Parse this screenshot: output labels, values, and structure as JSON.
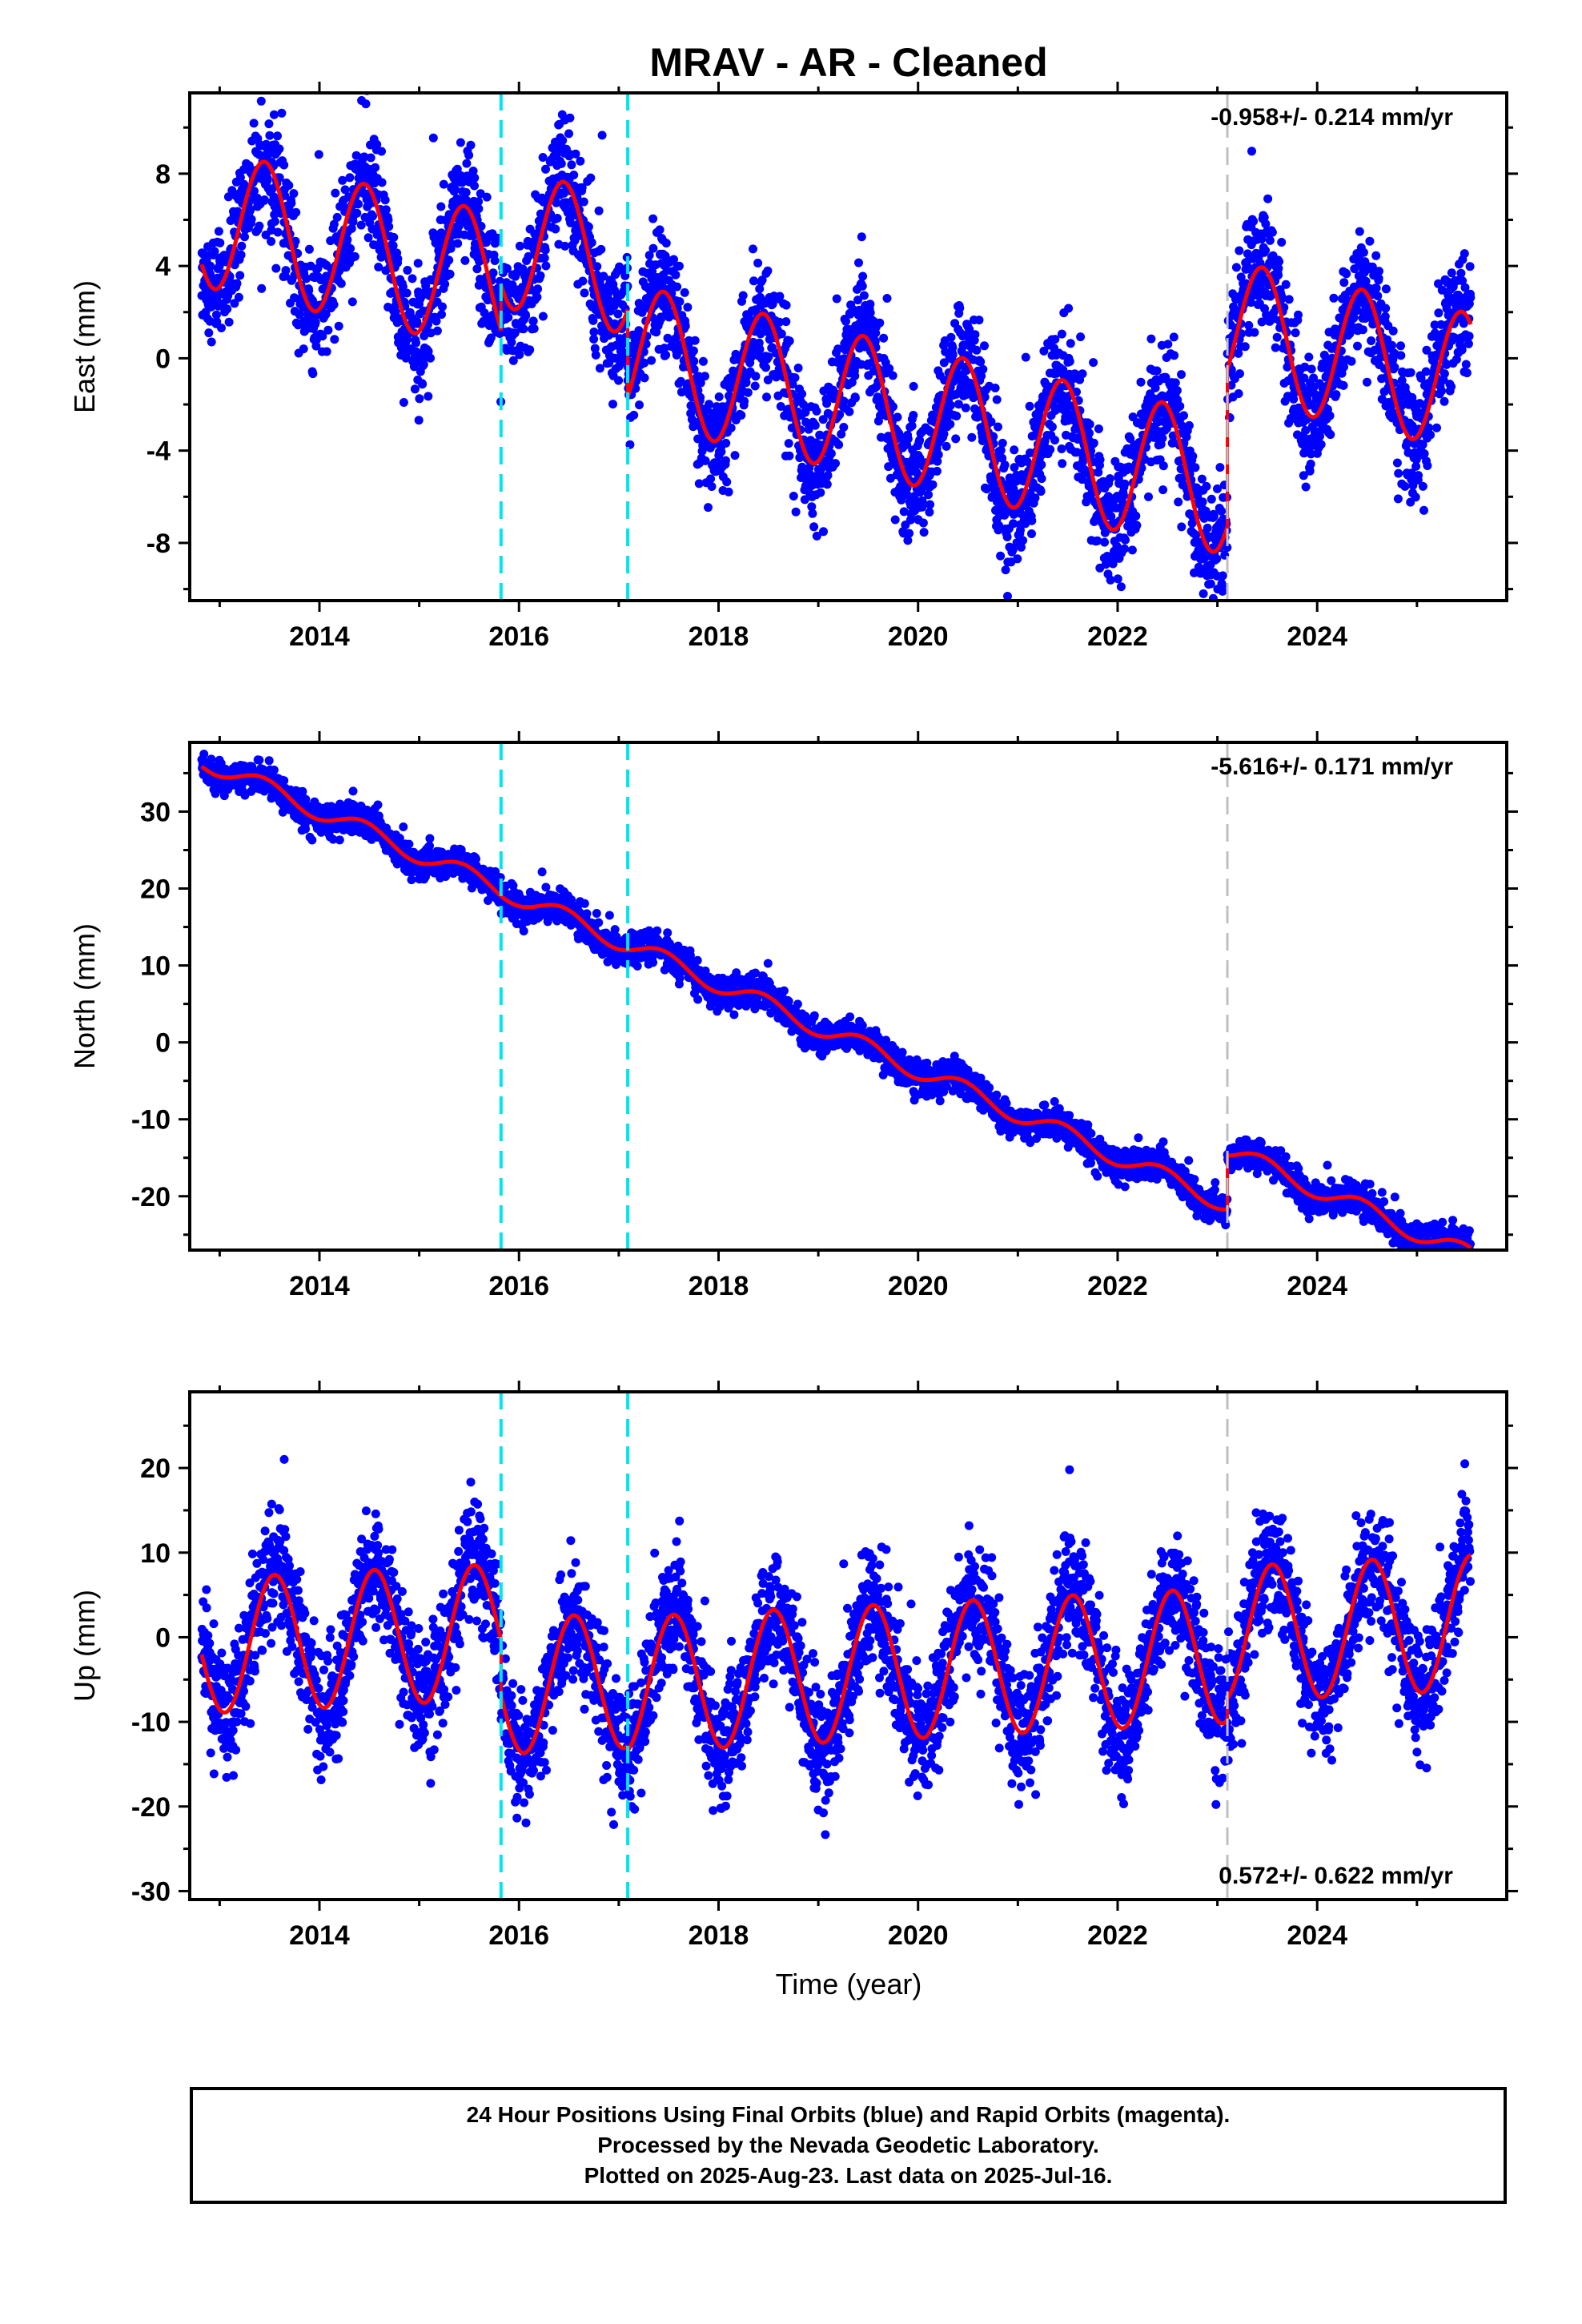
{
  "chart_data": {
    "type": "scatter",
    "title": "MRAV  - AR - Cleaned",
    "xlabel": "Time (year)",
    "xlim": [
      2012.7,
      2025.9
    ],
    "x_ticks": [
      2014,
      2016,
      2018,
      2020,
      2022,
      2024
    ],
    "x_tick_labels": [
      "2014",
      "2016",
      "2018",
      "2020",
      "2022",
      "2024"
    ],
    "legend": "none",
    "colors": {
      "observations": "#0000ff",
      "model": "#ff0000",
      "antenna_change": "#00e5ee",
      "earthquake": "#c0c0c0"
    },
    "offsets": {
      "cyan_dashed_x": [
        2015.82,
        2017.09
      ],
      "gray_dashed_x": [
        2023.1
      ]
    },
    "data_span": [
      2012.82,
      2025.54
    ],
    "panels": [
      {
        "name": "East",
        "ylabel": "East (mm)",
        "ylim": [
          -10.5,
          11.5
        ],
        "y_ticks": [
          -8,
          -4,
          0,
          4,
          8
        ],
        "y_tick_labels": [
          "-8",
          "-4",
          "0",
          "4",
          "8"
        ],
        "rate_label": "-0.958+/- 0.214 mm/yr",
        "rate_position": "top-right",
        "model": {
          "trend": -0.958,
          "amp_annual": 3.0,
          "phase_peak": 0.45,
          "intercept_2019": 0.2,
          "segment_offsets": [
            0,
            2.0,
            -1.8,
            5.0
          ]
        },
        "noise_sd": 1.3
      },
      {
        "name": "North",
        "ylabel": "North (mm)",
        "ylim": [
          -27,
          39
        ],
        "y_ticks": [
          -20,
          -10,
          0,
          10,
          20,
          30
        ],
        "y_tick_labels": [
          "-20",
          "-10",
          "0",
          "10",
          "20",
          "30"
        ],
        "rate_label": "-5.616+/- 0.171 mm/yr",
        "rate_position": "top-right",
        "model": {
          "trend": -5.616,
          "amp_annual": 1.2,
          "phase_peak": 0.45,
          "intercept_2019": 2.0,
          "segment_offsets": [
            0,
            0,
            0,
            7.0
          ]
        },
        "noise_sd": 1.0
      },
      {
        "name": "Up",
        "ylabel": "Up (mm)",
        "ylim": [
          -31,
          29
        ],
        "y_ticks": [
          -30,
          -20,
          -10,
          0,
          10,
          20
        ],
        "y_tick_labels": [
          "-30",
          "-20",
          "-10",
          "0",
          "10",
          "20"
        ],
        "rate_label": "0.572+/- 0.622 mm/yr",
        "rate_position": "bottom-right",
        "model": {
          "trend": 0.572,
          "amp_annual": 8.0,
          "phase_peak": 0.55,
          "intercept_2019": -2.0,
          "segment_offsets": [
            4.5,
            -2.0,
            -2.5,
            0
          ]
        },
        "noise_sd": 3.5
      }
    ]
  },
  "footer": {
    "line1": "24 Hour Positions Using Final Orbits (blue) and Rapid Orbits (magenta).",
    "line2": "Processed by the Nevada Geodetic Laboratory.",
    "line3": "Plotted on 2025-Aug-23. Last data on 2025-Jul-16."
  }
}
